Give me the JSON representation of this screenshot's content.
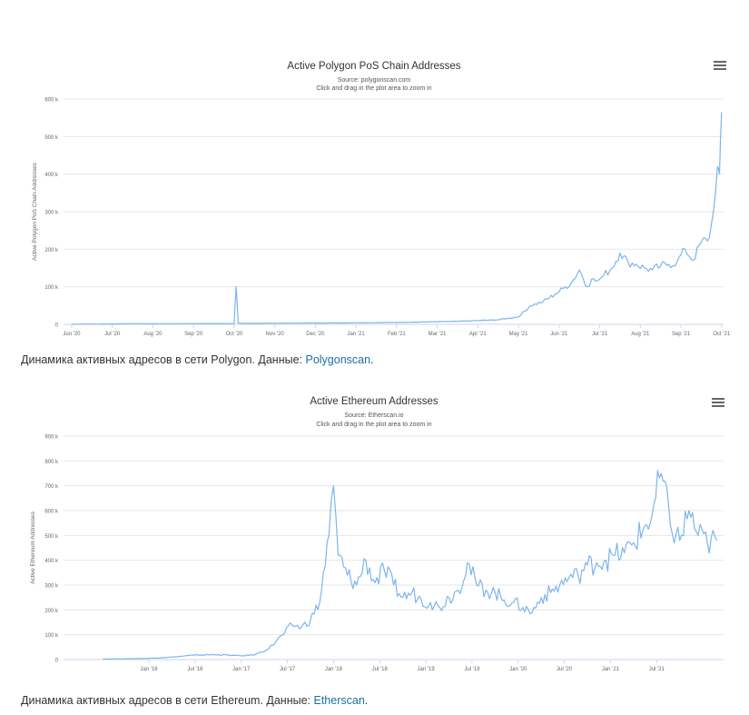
{
  "chart_data": [
    {
      "type": "line",
      "title": "Active Polygon PoS Chain Addresses",
      "subtitle_source": "Source: polygonscan.com",
      "subtitle_hint": "Click and drag in the plot area to zoom in",
      "ylabel": "Active Polygon PoS Chain Addresses",
      "xlabel": "",
      "ylim": [
        0,
        600000
      ],
      "yticks": [
        "0",
        "100 k",
        "200 k",
        "300 k",
        "400 k",
        "500 k",
        "600 k"
      ],
      "xticks": [
        "Jun '20",
        "Jul '20",
        "Aug '20",
        "Sep '20",
        "Oct '20",
        "Nov '20",
        "Dec '20",
        "Jan '21",
        "Feb '21",
        "Mar '21",
        "Apr '21",
        "May '21",
        "Jun '21",
        "Jul '21",
        "Aug '21",
        "Sep '21",
        "Oct '21"
      ],
      "grid": true,
      "color": "#7cb5ec",
      "series": [
        {
          "x": [
            0,
            1,
            1.5,
            2,
            2.5,
            3,
            3.5,
            4.0,
            4.05,
            4.1,
            4.2,
            5,
            6,
            7,
            8,
            9,
            9.5,
            10,
            10.5,
            11,
            11.3,
            11.6,
            11.9,
            12.1,
            12.3,
            12.5,
            12.7,
            12.8,
            12.9,
            13.0,
            13.1,
            13.3,
            13.5,
            13.7,
            13.9,
            14.1,
            14.3,
            14.5,
            14.7,
            14.9,
            15.1,
            15.3,
            15.5,
            15.7,
            15.8,
            15.9,
            15.95,
            16.0
          ],
          "y": [
            500,
            1000,
            2000,
            1500,
            1800,
            2000,
            2200,
            2000,
            100000,
            3000,
            2500,
            3000,
            3500,
            4000,
            5000,
            7000,
            8000,
            10000,
            12000,
            20000,
            50000,
            60000,
            80000,
            95000,
            110000,
            145000,
            100000,
            120000,
            115000,
            120000,
            130000,
            150000,
            190000,
            165000,
            160000,
            150000,
            145000,
            155000,
            160000,
            165000,
            200000,
            170000,
            220000,
            230000,
            300000,
            420000,
            400000,
            565000
          ]
        }
      ]
    },
    {
      "type": "line",
      "title": "Active Ethereum Addresses",
      "subtitle_source": "Source: Etherscan.io",
      "subtitle_hint": "Click and drag in the plot area to zoom in",
      "ylabel": "Active Ethereum Addresses",
      "xlabel": "",
      "ylim": [
        0,
        900000
      ],
      "yticks": [
        "0",
        "100 k",
        "200 k",
        "300 k",
        "400 k",
        "500 k",
        "600 k",
        "700 k",
        "800 k",
        "900 k"
      ],
      "xticks": [
        "Jan '16",
        "Jul '16",
        "Jan '17",
        "Jul '17",
        "Jan '18",
        "Jul '18",
        "Jan '19",
        "Jul '19",
        "Jan '20",
        "Jul '20",
        "Jan '21",
        "Jul '21"
      ],
      "grid": true,
      "color": "#7cb5ec",
      "series": [
        {
          "x": [
            -1.0,
            -0.5,
            0,
            0.5,
            1.0,
            1.5,
            1.8,
            2.0,
            2.3,
            2.6,
            2.9,
            3.1,
            3.3,
            3.5,
            3.7,
            3.9,
            4.0,
            4.1,
            4.3,
            4.5,
            4.7,
            4.9,
            5.1,
            5.3,
            5.5,
            5.7,
            5.9,
            6.1,
            6.3,
            6.5,
            6.7,
            6.9,
            7.1,
            7.3,
            7.5,
            7.7,
            7.9,
            8.1,
            8.3,
            8.5,
            8.7,
            8.9,
            9.1,
            9.3,
            9.5,
            9.7,
            9.9,
            10.1,
            10.3,
            10.5,
            10.7,
            10.9,
            11.1,
            11.3,
            11.5,
            11.7,
            11.9,
            12.1,
            12.3
          ],
          "y": [
            2000,
            3000,
            5000,
            10000,
            18000,
            20000,
            17000,
            15000,
            20000,
            45000,
            100000,
            140000,
            130000,
            160000,
            230000,
            500000,
            700000,
            420000,
            340000,
            300000,
            400000,
            310000,
            360000,
            300000,
            250000,
            270000,
            240000,
            230000,
            210000,
            250000,
            280000,
            390000,
            300000,
            280000,
            270000,
            240000,
            230000,
            210000,
            190000,
            250000,
            270000,
            300000,
            330000,
            340000,
            380000,
            390000,
            400000,
            420000,
            430000,
            470000,
            520000,
            580000,
            750000,
            540000,
            480000,
            600000,
            500000,
            470000,
            480000
          ]
        }
      ]
    }
  ],
  "captions": [
    {
      "prefix": "Динамика активных адресов в сети Polygon. Данные: ",
      "link": "Polygonscan",
      "suffix": "."
    },
    {
      "prefix": "Динамика активных адресов в сети Ethereum. Данные: ",
      "link": "Etherscan",
      "suffix": "."
    }
  ]
}
